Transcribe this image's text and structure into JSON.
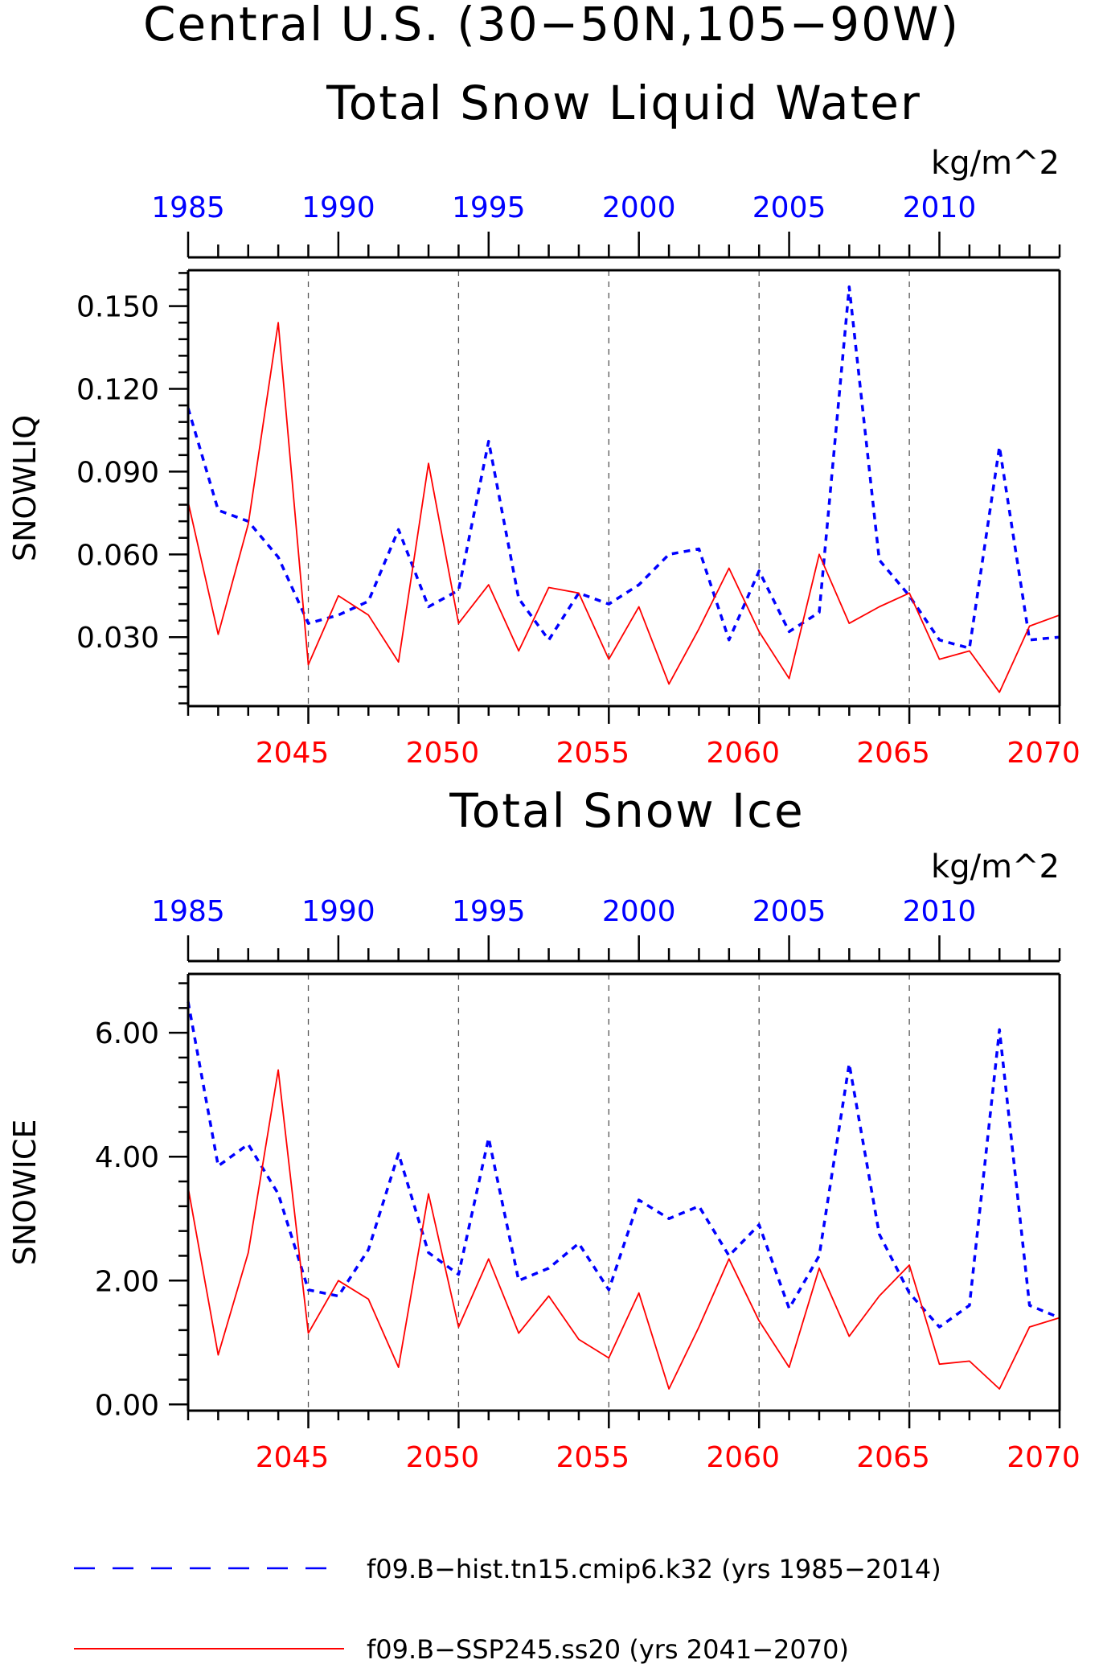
{
  "titles": {
    "main_line1": "Central U.S. (30−50N,105−90W)",
    "main_line2": "Total Snow Liquid Water",
    "panel2": "Total Snow Ice"
  },
  "colors": {
    "historical": "#0000ff",
    "future": "#ff0000",
    "axis": "#000000",
    "grid": "#555555"
  },
  "legend": [
    {
      "label": "f09.B−hist.tn15.cmip6.k32 (yrs 1985−2014)",
      "color": "#0000ff",
      "style": "dashed"
    },
    {
      "label": "f09.B−SSP245.ss20 (yrs 2041−2070)",
      "color": "#ff0000",
      "style": "solid"
    }
  ],
  "chart_data": [
    {
      "type": "line",
      "title": "Total Snow Liquid Water",
      "units": "kg/m^2",
      "ylabel": "SNOWLIQ",
      "ylim": [
        0.005,
        0.163
      ],
      "yticks": [
        0.03,
        0.06,
        0.09,
        0.12,
        0.15
      ],
      "ytick_labels": [
        "0.030",
        "0.060",
        "0.090",
        "0.120",
        "0.150"
      ],
      "grid": "vertical dashed at bottom-axis major ticks",
      "top_axis": {
        "years": [
          1985,
          1990,
          1995,
          2000,
          2005,
          2010
        ],
        "labels": [
          "1985",
          "1990",
          "1995",
          "2000",
          "2005",
          "2010"
        ],
        "color": "#0000ff"
      },
      "bottom_axis": {
        "years": [
          2045,
          2050,
          2055,
          2060,
          2065,
          2070
        ],
        "labels": [
          "2045",
          "2050",
          "2055",
          "2060",
          "2065",
          "2070"
        ],
        "color": "#ff0000"
      },
      "series": [
        {
          "name": "f09.B−hist.tn15.cmip6.k32 (yrs 1985−2014)",
          "color": "#0000ff",
          "style": "dashed",
          "x": [
            1985,
            1986,
            1987,
            1988,
            1989,
            1990,
            1991,
            1992,
            1993,
            1994,
            1995,
            1996,
            1997,
            1998,
            1999,
            2000,
            2001,
            2002,
            2003,
            2004,
            2005,
            2006,
            2007,
            2008,
            2009,
            2010,
            2011,
            2012,
            2013,
            2014
          ],
          "values": [
            0.113,
            0.076,
            0.072,
            0.059,
            0.035,
            0.038,
            0.043,
            0.069,
            0.041,
            0.047,
            0.101,
            0.044,
            0.029,
            0.046,
            0.042,
            0.049,
            0.06,
            0.062,
            0.029,
            0.054,
            0.032,
            0.039,
            0.157,
            0.058,
            0.045,
            0.029,
            0.026,
            0.099,
            0.029,
            0.03
          ]
        },
        {
          "name": "f09.B−SSP245.ss20 (yrs 2041−2070)",
          "color": "#ff0000",
          "style": "solid",
          "x": [
            2041,
            2042,
            2043,
            2044,
            2045,
            2046,
            2047,
            2048,
            2049,
            2050,
            2051,
            2052,
            2053,
            2054,
            2055,
            2056,
            2057,
            2058,
            2059,
            2060,
            2061,
            2062,
            2063,
            2064,
            2065,
            2066,
            2067,
            2068,
            2069,
            2070
          ],
          "values": [
            0.079,
            0.031,
            0.071,
            0.144,
            0.02,
            0.045,
            0.038,
            0.021,
            0.093,
            0.035,
            0.049,
            0.025,
            0.048,
            0.046,
            0.022,
            0.041,
            0.013,
            0.033,
            0.055,
            0.032,
            0.015,
            0.06,
            0.035,
            0.041,
            0.046,
            0.022,
            0.025,
            0.01,
            0.034,
            0.038
          ]
        }
      ]
    },
    {
      "type": "line",
      "title": "Total Snow Ice",
      "units": "kg/m^2",
      "ylabel": "SNOWICE",
      "ylim": [
        -0.1,
        6.95
      ],
      "yticks": [
        0,
        2,
        4,
        6
      ],
      "ytick_labels": [
        "0.00",
        "2.00",
        "4.00",
        "6.00"
      ],
      "grid": "vertical dashed at bottom-axis major ticks",
      "top_axis": {
        "years": [
          1985,
          1990,
          1995,
          2000,
          2005,
          2010
        ],
        "labels": [
          "1985",
          "1990",
          "1995",
          "2000",
          "2005",
          "2010"
        ],
        "color": "#0000ff"
      },
      "bottom_axis": {
        "years": [
          2045,
          2050,
          2055,
          2060,
          2065,
          2070
        ],
        "labels": [
          "2045",
          "2050",
          "2055",
          "2060",
          "2065",
          "2070"
        ],
        "color": "#ff0000"
      },
      "series": [
        {
          "name": "f09.B−hist.tn15.cmip6.k32 (yrs 1985−2014)",
          "color": "#0000ff",
          "style": "dashed",
          "x": [
            1985,
            1986,
            1987,
            1988,
            1989,
            1990,
            1991,
            1992,
            1993,
            1994,
            1995,
            1996,
            1997,
            1998,
            1999,
            2000,
            2001,
            2002,
            2003,
            2004,
            2005,
            2006,
            2007,
            2008,
            2009,
            2010,
            2011,
            2012,
            2013,
            2014
          ],
          "values": [
            6.5,
            3.85,
            4.2,
            3.4,
            1.85,
            1.75,
            2.5,
            4.05,
            2.45,
            2.1,
            4.3,
            2.0,
            2.2,
            2.6,
            1.85,
            3.3,
            3.0,
            3.2,
            2.4,
            2.9,
            1.55,
            2.4,
            5.5,
            2.75,
            1.8,
            1.25,
            1.6,
            6.05,
            1.6,
            1.4
          ]
        },
        {
          "name": "f09.B−SSP245.ss20 (yrs 2041−2070)",
          "color": "#ff0000",
          "style": "solid",
          "x": [
            2041,
            2042,
            2043,
            2044,
            2045,
            2046,
            2047,
            2048,
            2049,
            2050,
            2051,
            2052,
            2053,
            2054,
            2055,
            2056,
            2057,
            2058,
            2059,
            2060,
            2061,
            2062,
            2063,
            2064,
            2065,
            2066,
            2067,
            2068,
            2069,
            2070
          ],
          "values": [
            3.5,
            0.8,
            2.45,
            5.4,
            1.15,
            2.0,
            1.7,
            0.6,
            3.4,
            1.25,
            2.35,
            1.15,
            1.75,
            1.05,
            0.75,
            1.8,
            0.25,
            1.25,
            2.35,
            1.35,
            0.6,
            2.2,
            1.1,
            1.75,
            2.25,
            0.65,
            0.7,
            0.25,
            1.25,
            1.4
          ]
        }
      ]
    }
  ]
}
